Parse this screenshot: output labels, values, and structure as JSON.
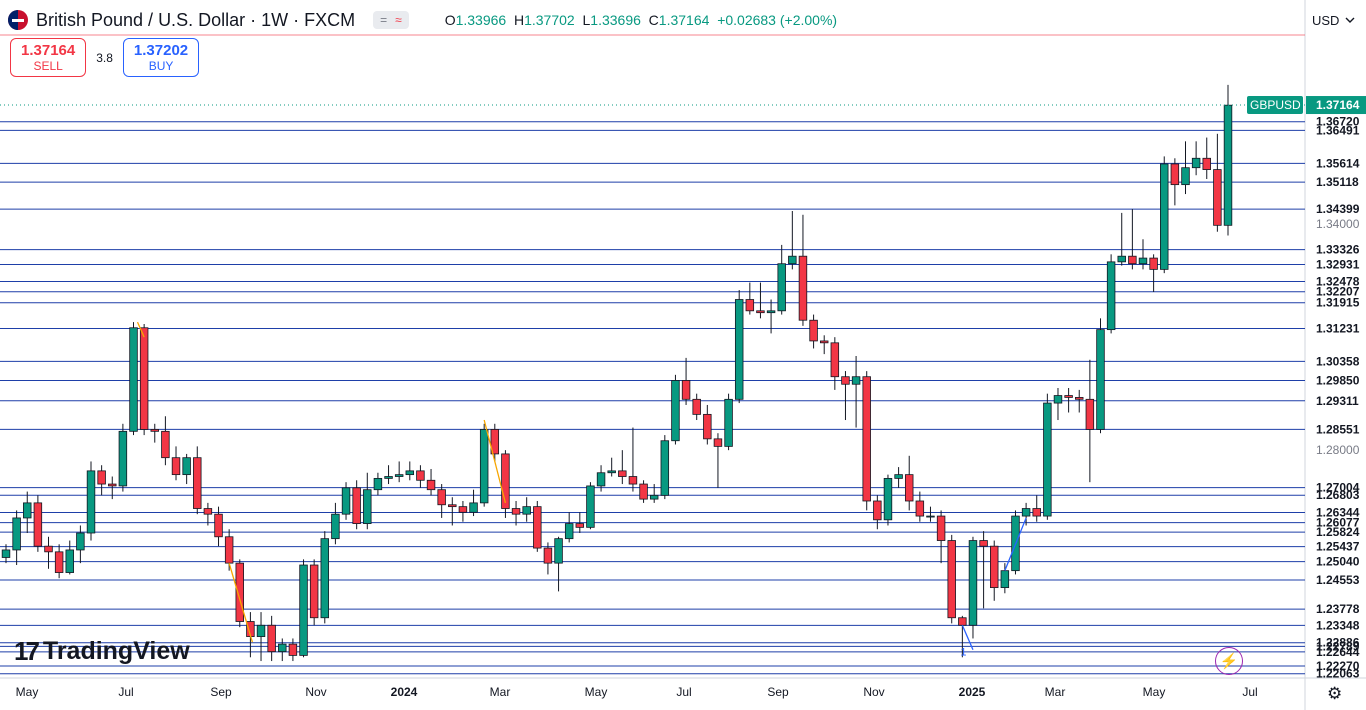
{
  "header": {
    "title": "British Pound / U.S. Dollar · 1W · FXCM",
    "badge_equals": "=",
    "badge_wave": "≈",
    "ohlc": {
      "open_label": "O",
      "open": "1.33966",
      "high_label": "H",
      "high": "1.37702",
      "low_label": "L",
      "low": "1.33696",
      "close_label": "C",
      "close": "1.37164",
      "change": "+0.02683 (+2.00%)"
    }
  },
  "trade": {
    "sell_price": "1.37164",
    "sell_label": "SELL",
    "spread": "3.8",
    "buy_price": "1.37202",
    "buy_label": "BUY"
  },
  "currency": "USD",
  "brand": {
    "name": "TradingView"
  },
  "icons": {
    "currency_dropdown": "chevron-down-icon",
    "flash": "lightning-icon",
    "settings": "settings-icon",
    "logo": "tradingview-logo-icon",
    "flag": "uk-us-flag-icon"
  },
  "colors": {
    "up": "#089981",
    "down": "#f23645",
    "level_lines": "#1e3fa8",
    "symbol_tag": "#089981",
    "accent": "#2962ff"
  },
  "chart_data": {
    "type": "candlestick",
    "symbol": "GBPUSD",
    "timeframe": "1W",
    "last_price": 1.37164,
    "y_range": [
      1.2195,
      1.3905
    ],
    "x_tick_labels": [
      "May",
      "Jul",
      "Sep",
      "Nov",
      "2024",
      "Mar",
      "May",
      "Jul",
      "Sep",
      "Nov",
      "2025",
      "Mar",
      "May",
      "Jul"
    ],
    "x_tick_bold": [
      false,
      false,
      false,
      false,
      true,
      false,
      false,
      false,
      false,
      false,
      true,
      false,
      false,
      false
    ],
    "y_tick_labels": [
      1.34,
      1.28
    ],
    "level_lines": [
      1.3672,
      1.36491,
      1.35614,
      1.35118,
      1.34399,
      1.33326,
      1.32931,
      1.32478,
      1.32207,
      1.31915,
      1.31231,
      1.30358,
      1.2985,
      1.29311,
      1.28551,
      1.27004,
      1.26803,
      1.26344,
      1.26077,
      1.25824,
      1.25437,
      1.2504,
      1.24553,
      1.23778,
      1.23348,
      1.22886,
      1.22789,
      1.22644,
      1.2227,
      1.22063
    ],
    "level_labels": [
      "1.36720",
      "1.36491",
      "1.35614",
      "1.35118",
      "1.34399",
      "1.33326",
      "1.32931",
      "1.32478",
      "1.32207",
      "1.31915",
      "1.31231",
      "1.30358",
      "1.29850",
      "1.29311",
      "1.28551",
      "1.27004",
      "1.26803",
      "1.26344",
      "1.26077",
      "1.25824",
      "1.25437",
      "1.25040",
      "1.24553",
      "1.23778",
      "1.23348",
      "1.22886",
      "1.22789",
      "1.22644",
      "1.22270",
      "1.22063"
    ],
    "price_tag": {
      "symbol": "GBPUSD",
      "value": "1.37164"
    },
    "annotations": [
      "1"
    ],
    "candles": [
      [
        1.2515,
        1.2535,
        1.25,
        1.255
      ],
      [
        1.2535,
        1.262,
        1.2495,
        1.264
      ],
      [
        1.262,
        1.266,
        1.258,
        1.269
      ],
      [
        1.266,
        1.2545,
        1.253,
        1.268
      ],
      [
        1.2545,
        1.253,
        1.2485,
        1.257
      ],
      [
        1.253,
        1.2475,
        1.246,
        1.255
      ],
      [
        1.2475,
        1.2535,
        1.247,
        1.256
      ],
      [
        1.2535,
        1.258,
        1.25,
        1.26
      ],
      [
        1.258,
        1.2745,
        1.256,
        1.277
      ],
      [
        1.2745,
        1.271,
        1.268,
        1.276
      ],
      [
        1.271,
        1.2705,
        1.267,
        1.273
      ],
      [
        1.2705,
        1.285,
        1.269,
        1.287
      ],
      [
        1.285,
        1.3125,
        1.284,
        1.314
      ],
      [
        1.3125,
        1.2855,
        1.284,
        1.3135
      ],
      [
        1.2855,
        1.285,
        1.282,
        1.287
      ],
      [
        1.285,
        1.278,
        1.276,
        1.289
      ],
      [
        1.278,
        1.2735,
        1.272,
        1.281
      ],
      [
        1.2735,
        1.278,
        1.271,
        1.279
      ],
      [
        1.278,
        1.2645,
        1.263,
        1.281
      ],
      [
        1.2645,
        1.263,
        1.26,
        1.266
      ],
      [
        1.263,
        1.257,
        1.2545,
        1.265
      ],
      [
        1.257,
        1.25,
        1.248,
        1.259
      ],
      [
        1.25,
        1.2345,
        1.233,
        1.251
      ],
      [
        1.2345,
        1.2305,
        1.225,
        1.237
      ],
      [
        1.2305,
        1.2335,
        1.224,
        1.237
      ],
      [
        1.2335,
        1.2265,
        1.224,
        1.236
      ],
      [
        1.2265,
        1.2285,
        1.224,
        1.23
      ],
      [
        1.2285,
        1.2255,
        1.224,
        1.23
      ],
      [
        1.2255,
        1.2495,
        1.225,
        1.251
      ],
      [
        1.2495,
        1.2355,
        1.2335,
        1.251
      ],
      [
        1.2355,
        1.2565,
        1.234,
        1.2585
      ],
      [
        1.2565,
        1.263,
        1.255,
        1.266
      ],
      [
        1.263,
        1.27,
        1.2615,
        1.2715
      ],
      [
        1.27,
        1.2605,
        1.259,
        1.272
      ],
      [
        1.2605,
        1.2695,
        1.259,
        1.274
      ],
      [
        1.2695,
        1.2725,
        1.268,
        1.274
      ],
      [
        1.2725,
        1.273,
        1.271,
        1.276
      ],
      [
        1.273,
        1.2735,
        1.2715,
        1.277
      ],
      [
        1.2735,
        1.2745,
        1.272,
        1.277
      ],
      [
        1.2745,
        1.272,
        1.27,
        1.276
      ],
      [
        1.272,
        1.2695,
        1.268,
        1.275
      ],
      [
        1.2695,
        1.2655,
        1.262,
        1.271
      ],
      [
        1.2655,
        1.265,
        1.26,
        1.2675
      ],
      [
        1.265,
        1.2635,
        1.261,
        1.2665
      ],
      [
        1.2635,
        1.266,
        1.2625,
        1.2695
      ],
      [
        1.266,
        1.2855,
        1.265,
        1.287
      ],
      [
        1.2855,
        1.279,
        1.277,
        1.287
      ],
      [
        1.279,
        1.2645,
        1.262,
        1.28
      ],
      [
        1.2645,
        1.263,
        1.26,
        1.2665
      ],
      [
        1.263,
        1.265,
        1.261,
        1.2675
      ],
      [
        1.265,
        1.254,
        1.253,
        1.2665
      ],
      [
        1.254,
        1.25,
        1.247,
        1.2555
      ],
      [
        1.25,
        1.2565,
        1.2425,
        1.257
      ],
      [
        1.2565,
        1.2605,
        1.2555,
        1.2635
      ],
      [
        1.2605,
        1.2595,
        1.258,
        1.2635
      ],
      [
        1.2595,
        1.2705,
        1.259,
        1.2715
      ],
      [
        1.2705,
        1.274,
        1.269,
        1.276
      ],
      [
        1.274,
        1.2745,
        1.273,
        1.278
      ],
      [
        1.2745,
        1.273,
        1.271,
        1.28
      ],
      [
        1.273,
        1.271,
        1.269,
        1.286
      ],
      [
        1.271,
        1.267,
        1.266,
        1.272
      ],
      [
        1.267,
        1.268,
        1.266,
        1.271
      ],
      [
        1.268,
        1.2825,
        1.267,
        1.284
      ],
      [
        1.2825,
        1.2985,
        1.2815,
        1.3
      ],
      [
        1.2985,
        1.2935,
        1.292,
        1.3045
      ],
      [
        1.2935,
        1.2895,
        1.288,
        1.295
      ],
      [
        1.2895,
        1.283,
        1.2815,
        1.292
      ],
      [
        1.283,
        1.281,
        1.27,
        1.2845
      ],
      [
        1.281,
        1.2935,
        1.28,
        1.295
      ],
      [
        1.2935,
        1.32,
        1.2925,
        1.3225
      ],
      [
        1.32,
        1.317,
        1.316,
        1.3245
      ],
      [
        1.317,
        1.3165,
        1.315,
        1.3245
      ],
      [
        1.3165,
        1.317,
        1.311,
        1.32
      ],
      [
        1.317,
        1.3295,
        1.316,
        1.3345
      ],
      [
        1.3295,
        1.3315,
        1.328,
        1.3435
      ],
      [
        1.3315,
        1.3145,
        1.313,
        1.3425
      ],
      [
        1.3145,
        1.309,
        1.307,
        1.316
      ],
      [
        1.309,
        1.3085,
        1.3055,
        1.3105
      ],
      [
        1.3085,
        1.2995,
        1.296,
        1.31
      ],
      [
        1.2995,
        1.2975,
        1.288,
        1.301
      ],
      [
        1.2975,
        1.2995,
        1.286,
        1.305
      ],
      [
        1.2995,
        1.2665,
        1.264,
        1.301
      ],
      [
        1.2665,
        1.2615,
        1.259,
        1.268
      ],
      [
        1.2615,
        1.2725,
        1.26,
        1.2735
      ],
      [
        1.2725,
        1.2735,
        1.27,
        1.2755
      ],
      [
        1.2735,
        1.2665,
        1.264,
        1.2785
      ],
      [
        1.2665,
        1.2625,
        1.261,
        1.269
      ],
      [
        1.2625,
        1.2625,
        1.261,
        1.265
      ],
      [
        1.2625,
        1.256,
        1.25,
        1.264
      ],
      [
        1.256,
        1.2355,
        1.234,
        1.2575
      ],
      [
        1.2355,
        1.2335,
        1.225,
        1.236
      ],
      [
        1.2335,
        1.256,
        1.23,
        1.257
      ],
      [
        1.256,
        1.2545,
        1.238,
        1.2585
      ],
      [
        1.2545,
        1.2435,
        1.24,
        1.256
      ],
      [
        1.2435,
        1.248,
        1.242,
        1.25
      ],
      [
        1.248,
        1.2625,
        1.247,
        1.264
      ],
      [
        1.2625,
        1.2645,
        1.26,
        1.266
      ],
      [
        1.2645,
        1.2625,
        1.261,
        1.268
      ],
      [
        1.2625,
        1.2925,
        1.2615,
        1.295
      ],
      [
        1.2925,
        1.2945,
        1.288,
        1.2965
      ],
      [
        1.2945,
        1.294,
        1.29,
        1.2965
      ],
      [
        1.294,
        1.2935,
        1.29,
        1.296
      ],
      [
        1.2935,
        1.2855,
        1.2715,
        1.304
      ],
      [
        1.2855,
        1.312,
        1.2845,
        1.315
      ],
      [
        1.312,
        1.33,
        1.311,
        1.332
      ],
      [
        1.33,
        1.3315,
        1.329,
        1.343
      ],
      [
        1.3315,
        1.3295,
        1.328,
        1.344
      ],
      [
        1.3295,
        1.331,
        1.328,
        1.336
      ],
      [
        1.331,
        1.328,
        1.322,
        1.332
      ],
      [
        1.328,
        1.356,
        1.327,
        1.358
      ],
      [
        1.356,
        1.3505,
        1.345,
        1.3575
      ],
      [
        1.3505,
        1.355,
        1.348,
        1.362
      ],
      [
        1.355,
        1.3575,
        1.353,
        1.362
      ],
      [
        1.3575,
        1.3545,
        1.352,
        1.363
      ],
      [
        1.3545,
        1.3397,
        1.338,
        1.364
      ],
      [
        1.3397,
        1.3716,
        1.337,
        1.377
      ]
    ]
  }
}
